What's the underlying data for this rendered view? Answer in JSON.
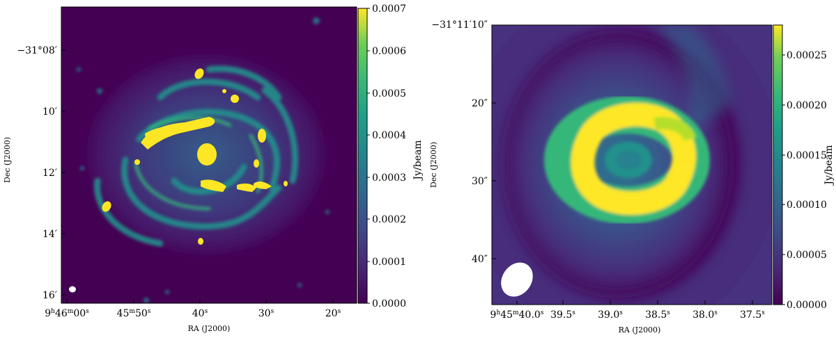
{
  "panels": [
    {
      "id": "left",
      "xlabel": "RA (J2000)",
      "ylabel": "Dec (J2000)",
      "yticks": [
        "−31°08′",
        "10′",
        "12′",
        "14′",
        "16′"
      ],
      "xticks": [
        {
          "h": "9",
          "hs": "h",
          "m": "46",
          "ms": "m",
          "s": "00",
          "ss": "s"
        },
        {
          "m": "45",
          "ms": "m",
          "s": "50",
          "ss": "s"
        },
        {
          "s": "40",
          "ss": "s"
        },
        {
          "s": "30",
          "ss": "s"
        },
        {
          "s": "20",
          "ss": "s"
        }
      ],
      "colorbar": {
        "label": "Jy/beam",
        "ticks": [
          "0.0000",
          "0.0001",
          "0.0002",
          "0.0003",
          "0.0004",
          "0.0005",
          "0.0006",
          "0.0007"
        ]
      }
    },
    {
      "id": "right",
      "xlabel": "RA (J2000)",
      "ylabel": "Dec (J2000)",
      "corner_label": "−31°11′10″",
      "yticks": [
        "20″",
        "30″",
        "40″"
      ],
      "xticks": [
        {
          "h": "9",
          "hs": "h",
          "m": "45",
          "ms": "m",
          "s": "40.0",
          "ss": "s"
        },
        {
          "s": "39.5",
          "ss": "s"
        },
        {
          "s": "39.0",
          "ss": "s"
        },
        {
          "s": "38.5",
          "ss": "s"
        },
        {
          "s": "38.0",
          "ss": "s"
        },
        {
          "s": "37.5",
          "ss": "s"
        }
      ],
      "colorbar": {
        "label": "Jy/beam",
        "ticks": [
          "0.00000",
          "0.00005",
          "0.00010",
          "0.00015",
          "0.00020",
          "0.00025"
        ]
      }
    }
  ],
  "colors": {
    "background": "#440154",
    "low": "#3b528b",
    "mid": "#21918c",
    "high": "#5ec962",
    "peak": "#fde725",
    "beam": "#ffffff"
  }
}
